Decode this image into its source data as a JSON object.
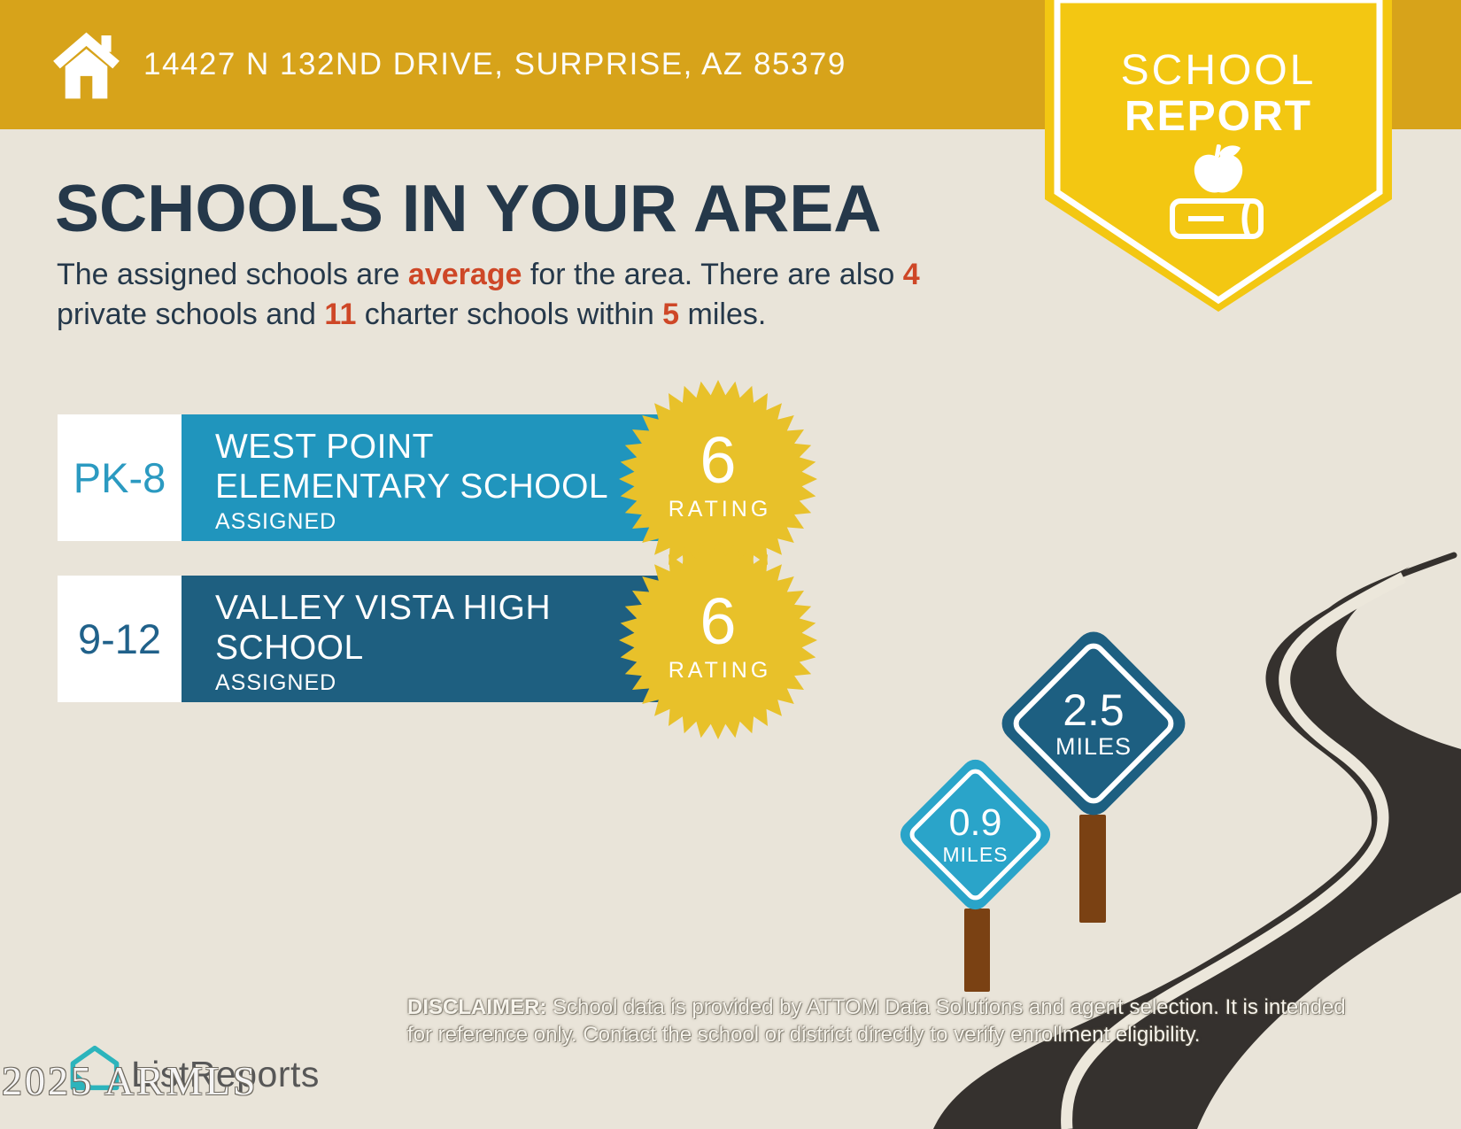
{
  "header": {
    "address": "14427 N 132ND DRIVE, SURPRISE, AZ 85379"
  },
  "ribbon": {
    "line1": "SCHOOL",
    "line2": "REPORT"
  },
  "title": "SCHOOLS IN YOUR AREA",
  "intro": {
    "s1": "The assigned schools are ",
    "s2": "average",
    "s3": " for the area. There are also ",
    "s4": "4",
    "s5": " private schools and ",
    "s6": "11",
    "s7": " charter schools within ",
    "s8": "5",
    "s9": " miles."
  },
  "schools": [
    {
      "grades": "PK-8",
      "name_line1": "WEST POINT",
      "name_line2": "ELEMENTARY SCHOOL",
      "status": "ASSIGNED",
      "rating": "6",
      "rating_label": "RATING",
      "bar_color": "#2095BD"
    },
    {
      "grades": "9-12",
      "name_line1": "VALLEY VISTA HIGH",
      "name_line2": "SCHOOL",
      "status": "ASSIGNED",
      "rating": "6",
      "rating_label": "RATING",
      "bar_color": "#1E5F80"
    }
  ],
  "signs": [
    {
      "distance": "2.5",
      "unit": "MILES",
      "color": "#1D5F81"
    },
    {
      "distance": "0.9",
      "unit": "MILES",
      "color": "#2AA4C9"
    }
  ],
  "footer": {
    "logo_text": "ListReports",
    "disclaimer_label": "DISCLAIMER:",
    "disclaimer_rest1": " School data is provided by ATTOM Data Solutions and agent selection. It is intended",
    "disclaimer_line2": "for reference only. Contact the school or district directly to verify enrollment eligibility.",
    "watermark": "2025 ARMLS"
  },
  "colors": {
    "header_gold": "#D7A31A",
    "banner_yellow": "#F3C712",
    "starburst_gold": "#E8C12A",
    "teal_bar": "#2095BD",
    "navy_bar": "#1E5F80",
    "heading_navy": "#25384A",
    "highlight_red": "#CE4727",
    "background": "#E9E4D9",
    "road": "#35312E",
    "post_brown": "#7A4113"
  }
}
